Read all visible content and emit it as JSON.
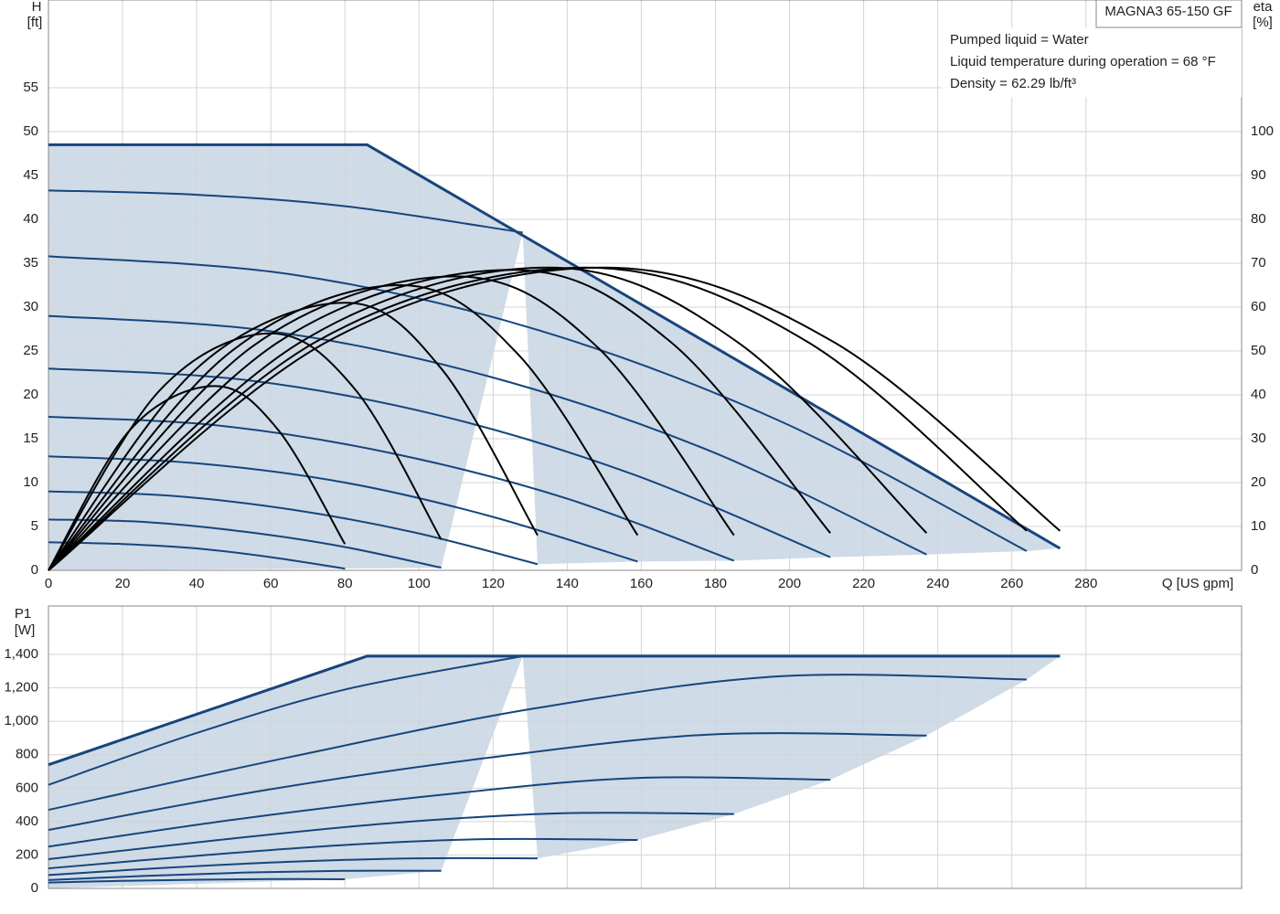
{
  "chart_data": [
    {
      "type": "line",
      "title": "MAGNA3 65-150 GF",
      "annotations": [
        "Pumped liquid = Water",
        "Liquid temperature during operation = 68 °F",
        "Density = 62.29 lb/ft³"
      ],
      "x_label": "Q [US gpm]",
      "y_label": "H",
      "y_unit": "[ft]",
      "y2_label": "eta",
      "y2_unit": "[%]",
      "xlim": [
        0,
        322
      ],
      "xticks": [
        0,
        20,
        40,
        60,
        80,
        100,
        120,
        140,
        160,
        180,
        200,
        220,
        240,
        260,
        280
      ],
      "ylim": [
        0,
        65
      ],
      "yticks": [
        0,
        5,
        10,
        15,
        20,
        25,
        30,
        35,
        40,
        45,
        50,
        55
      ],
      "y2lim": [
        0,
        130
      ],
      "y2ticks": [
        0,
        10,
        20,
        30,
        40,
        50,
        60,
        70,
        80,
        90,
        100
      ],
      "grid": true,
      "smooth": true,
      "fill_color": "#cfdbe7",
      "series": [
        {
          "color": "#17457c",
          "smooth": false,
          "x": [
            0,
            86,
            273
          ],
          "values": [
            48.5,
            48.5,
            2.5
          ]
        },
        {
          "color": "#17457c",
          "x": [
            0,
            40,
            80,
            128
          ],
          "values": [
            43.3,
            42.8,
            41.5,
            38.5
          ]
        },
        {
          "color": "#17457c",
          "x": [
            0,
            66,
            132,
            198,
            264
          ],
          "values": [
            35.8,
            33.7,
            27.4,
            16.9,
            2.2
          ]
        },
        {
          "color": "#17457c",
          "x": [
            0,
            59,
            118,
            178,
            237
          ],
          "values": [
            29,
            27.3,
            22.2,
            13.7,
            1.8
          ]
        },
        {
          "color": "#17457c",
          "x": [
            0,
            53,
            106,
            158,
            211
          ],
          "values": [
            23,
            21.7,
            17.6,
            10.9,
            1.5
          ]
        },
        {
          "color": "#17457c",
          "x": [
            0,
            46,
            92,
            139,
            185
          ],
          "values": [
            17.5,
            16.5,
            13.4,
            8.3,
            1.1
          ]
        },
        {
          "color": "#17457c",
          "x": [
            0,
            40,
            80,
            119,
            159
          ],
          "values": [
            13,
            12.2,
            10,
            6.2,
            1
          ]
        },
        {
          "color": "#17457c",
          "x": [
            0,
            33,
            66,
            99,
            132
          ],
          "values": [
            9,
            8.5,
            6.9,
            4.3,
            0.7
          ]
        },
        {
          "color": "#17457c",
          "x": [
            0,
            26.5,
            53,
            79.5,
            106
          ],
          "values": [
            5.8,
            5.5,
            4.4,
            2.7,
            0.3
          ]
        },
        {
          "color": "#17457c",
          "x": [
            0,
            20,
            40,
            60,
            80
          ],
          "values": [
            3.2,
            3,
            2.5,
            1.5,
            0.2
          ]
        },
        {
          "color": "#000000",
          "axis": "y2",
          "x": [
            0,
            75,
            150,
            212,
            273
          ],
          "values": [
            0,
            52,
            69,
            52,
            9
          ]
        },
        {
          "color": "#000000",
          "axis": "y2",
          "x": [
            0,
            72,
            145,
            205,
            264
          ],
          "values": [
            0,
            52,
            69,
            52,
            9
          ]
        },
        {
          "color": "#000000",
          "axis": "y2",
          "x": [
            0,
            68,
            135,
            186,
            237
          ],
          "values": [
            0,
            52,
            69,
            52,
            8.5
          ]
        },
        {
          "color": "#000000",
          "axis": "y2",
          "x": [
            0,
            62,
            125,
            168,
            211
          ],
          "values": [
            0,
            52,
            68.5,
            52,
            8.5
          ]
        },
        {
          "color": "#000000",
          "axis": "y2",
          "x": [
            0,
            55,
            110,
            148,
            185
          ],
          "values": [
            0,
            51,
            67,
            51,
            8
          ]
        },
        {
          "color": "#000000",
          "axis": "y2",
          "x": [
            0,
            48,
            95,
            127,
            159
          ],
          "values": [
            0,
            49,
            65,
            49,
            8
          ]
        },
        {
          "color": "#000000",
          "axis": "y2",
          "x": [
            0,
            40,
            80,
            106,
            132
          ],
          "values": [
            0,
            46,
            61,
            46,
            8
          ]
        },
        {
          "color": "#000000",
          "axis": "y2",
          "x": [
            0,
            30,
            60,
            83,
            106
          ],
          "values": [
            0,
            41,
            54,
            41,
            7
          ]
        },
        {
          "color": "#000000",
          "axis": "y2",
          "x": [
            0,
            22,
            45,
            62,
            80
          ],
          "values": [
            0,
            32,
            42,
            32,
            6
          ]
        }
      ]
    },
    {
      "type": "line",
      "y_label": "P1",
      "y_unit": "[W]",
      "ylim": [
        0,
        1690
      ],
      "yticks": [
        0,
        200,
        400,
        600,
        800,
        {
          "value": 1000,
          "label": "1,000"
        },
        {
          "value": 1200,
          "label": "1,200"
        },
        {
          "value": 1400,
          "label": "1,400"
        }
      ],
      "grid": true,
      "smooth": true,
      "fill_color": "#cfdbe7",
      "series": [
        {
          "color": "#17457c",
          "smooth": false,
          "x": [
            0,
            86,
            273
          ],
          "values": [
            740,
            1390,
            1390
          ]
        },
        {
          "color": "#17457c",
          "x": [
            0,
            40,
            80,
            128
          ],
          "values": [
            620,
            930,
            1190,
            1390
          ]
        },
        {
          "color": "#17457c",
          "x": [
            0,
            66,
            132,
            198,
            264
          ],
          "values": [
            470,
            790,
            1080,
            1270,
            1250
          ]
        },
        {
          "color": "#17457c",
          "x": [
            0,
            59,
            118,
            178,
            237
          ],
          "values": [
            350,
            590,
            780,
            920,
            915
          ]
        },
        {
          "color": "#17457c",
          "x": [
            0,
            53,
            106,
            158,
            211
          ],
          "values": [
            250,
            420,
            560,
            660,
            650
          ]
        },
        {
          "color": "#17457c",
          "x": [
            0,
            46,
            92,
            139,
            185
          ],
          "values": [
            175,
            290,
            390,
            450,
            445
          ]
        },
        {
          "color": "#17457c",
          "x": [
            0,
            40,
            80,
            119,
            159
          ],
          "values": [
            120,
            195,
            260,
            295,
            290
          ]
        },
        {
          "color": "#17457c",
          "x": [
            0,
            33,
            66,
            99,
            132
          ],
          "values": [
            80,
            125,
            160,
            180,
            180
          ]
        },
        {
          "color": "#17457c",
          "x": [
            0,
            26.5,
            53,
            79.5,
            106
          ],
          "values": [
            50,
            75,
            95,
            105,
            105
          ]
        },
        {
          "color": "#17457c",
          "x": [
            0,
            20,
            40,
            60,
            80
          ],
          "values": [
            35,
            45,
            52,
            56,
            55
          ]
        }
      ]
    }
  ]
}
